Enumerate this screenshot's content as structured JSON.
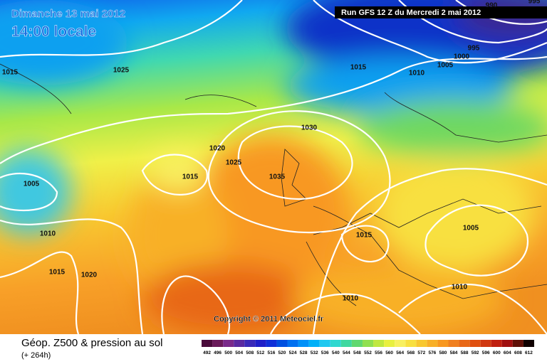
{
  "header": {
    "date": "Dimanche 13 mai 2012",
    "time": "14:00 locale",
    "run": "Run GFS 12 Z du Mercredi 2 mai 2012"
  },
  "copyright": "Copyright © 2011 Meteociel.fr",
  "footer": {
    "title": "Géop. Z500 & pression au sol",
    "lead": "(+ 264h)"
  },
  "isobar_labels": [
    1015,
    1025,
    1015,
    1010,
    995,
    1000,
    1005,
    990,
    995,
    1030,
    1020,
    1025,
    1015,
    1035,
    1005,
    1010,
    1015,
    1005,
    1015,
    1020,
    1010,
    1010
  ],
  "legend": {
    "values": [
      492,
      496,
      500,
      504,
      508,
      512,
      516,
      520,
      524,
      528,
      532,
      536,
      540,
      544,
      548,
      552,
      556,
      560,
      564,
      568,
      572,
      576,
      580,
      584,
      588,
      592,
      596,
      600,
      604,
      608,
      612
    ],
    "colors": [
      "#4a0a3a",
      "#6a1a5a",
      "#7a2a8a",
      "#5a2aa0",
      "#3a2ab8",
      "#2020c8",
      "#1030d8",
      "#0050e0",
      "#0070f0",
      "#0090f8",
      "#00b0f8",
      "#20c8f0",
      "#30d8d0",
      "#40d8a0",
      "#60d870",
      "#90e050",
      "#c0e840",
      "#e8f040",
      "#f8f060",
      "#f8e040",
      "#f8c830",
      "#f8b028",
      "#f89820",
      "#f08020",
      "#e86818",
      "#e05010",
      "#d03810",
      "#c02010",
      "#a01010",
      "#601008",
      "#100000"
    ]
  }
}
